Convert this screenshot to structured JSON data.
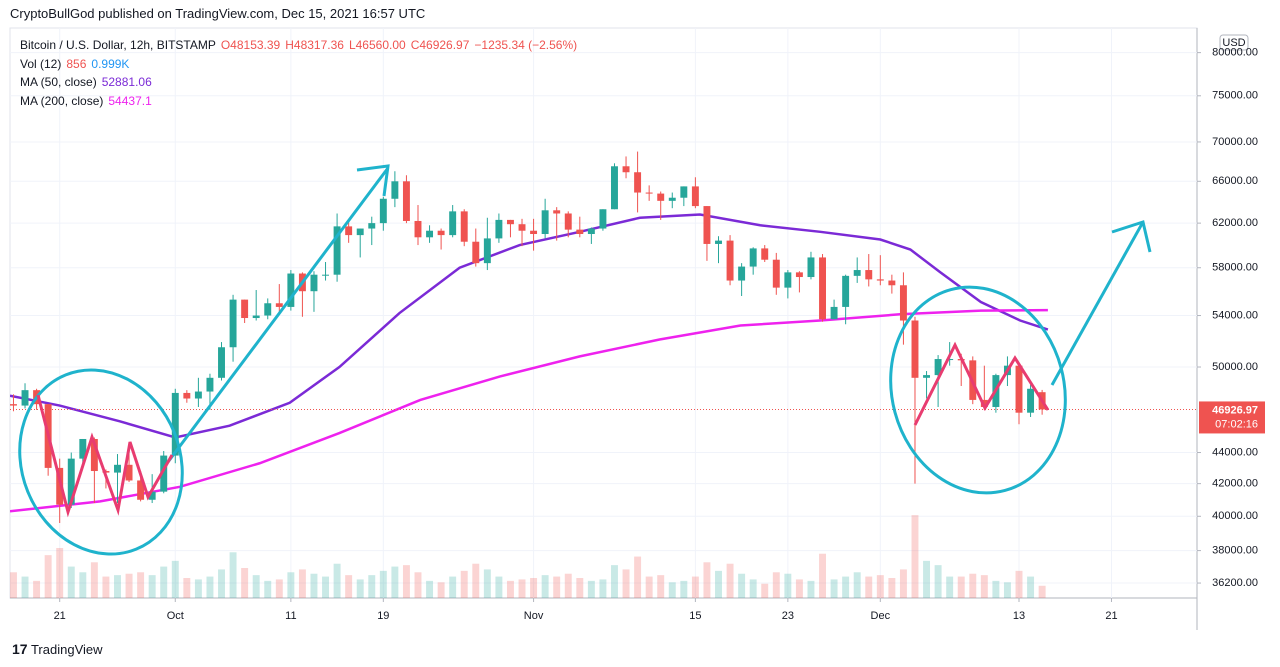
{
  "header": "CryptoBullGod published on TradingView.com, Dec 15, 2021 16:57 UTC",
  "footer": "TradingView",
  "chart_data": {
    "type": "candlestick",
    "symbol": "Bitcoin / U.S. Dollar, 12h, BITSTAMP",
    "ohlc_legend": [
      "O48153.39",
      "H48317.36",
      "L46560.00",
      "C46926.97",
      "−1235.34 (−2.56%)"
    ],
    "volume_legend": {
      "name": "Vol (12)",
      "value": 856,
      "average": "0.999K"
    },
    "currency": "USD",
    "last_price": 46926.97,
    "countdown": "07:02:16",
    "log_scale": true,
    "grid": true,
    "up_color": "#26a69a",
    "down_color": "#ef5350",
    "x": [
      16,
      17,
      18,
      19,
      20,
      21,
      22,
      23,
      24,
      25,
      26,
      27,
      28,
      29,
      30,
      31,
      32,
      33,
      34,
      35,
      36,
      37,
      38,
      39,
      40,
      41,
      42,
      43,
      44,
      45,
      46,
      47,
      48,
      49,
      50,
      51,
      52,
      53,
      54,
      55,
      56,
      57,
      58,
      59,
      60,
      61,
      62,
      63,
      64,
      65,
      66,
      67,
      68,
      69,
      70,
      71,
      72,
      73,
      74,
      75,
      76,
      77,
      78,
      79,
      80,
      81,
      82,
      83,
      84,
      85,
      86,
      87,
      88,
      89,
      90,
      91,
      92,
      93,
      94,
      95,
      96,
      97,
      98,
      99,
      100,
      101,
      102,
      103,
      104,
      105
    ],
    "open": [
      47300,
      47200,
      48300,
      47300,
      43000,
      40700,
      43600,
      44900,
      42800,
      42700,
      43200,
      42200,
      41000,
      41500,
      43800,
      48100,
      47700,
      48200,
      49200,
      51500,
      55300,
      53800,
      54000,
      55000,
      54700,
      57500,
      56000,
      57400,
      57400,
      61700,
      60900,
      61500,
      62000,
      64300,
      66000,
      62200,
      60700,
      61300,
      60900,
      63100,
      60300,
      58400,
      60600,
      62300,
      61900,
      61300,
      61000,
      63200,
      62900,
      61400,
      61000,
      61500,
      63300,
      67500,
      66900,
      64900,
      64800,
      64100,
      64400,
      65500,
      63600,
      60100,
      60400,
      56900,
      58100,
      59700,
      58700,
      56300,
      57600,
      57200,
      58900,
      53700,
      54700,
      57300,
      57800,
      57000,
      56900,
      56500,
      53600,
      49200,
      49400,
      50600,
      50600,
      50500,
      47600,
      47100,
      49400,
      50100,
      46700,
      48153.39
    ],
    "high": [
      48000,
      48800,
      48400,
      47300,
      43600,
      44000,
      44900,
      45000,
      42900,
      43900,
      44300,
      42800,
      42600,
      44100,
      48400,
      48300,
      49200,
      49500,
      51900,
      55700,
      55300,
      56100,
      55400,
      56600,
      57800,
      57600,
      57700,
      58500,
      62900,
      62300,
      61500,
      62600,
      64500,
      67000,
      66600,
      63700,
      61800,
      61500,
      63700,
      63300,
      61500,
      62500,
      62900,
      62300,
      62400,
      62400,
      64300,
      63500,
      63100,
      62600,
      61600,
      63300,
      67800,
      68500,
      69000,
      65600,
      65000,
      64900,
      65500,
      66400,
      63600,
      60800,
      60900,
      58400,
      59800,
      60000,
      59300,
      57800,
      57700,
      59400,
      59200,
      55300,
      57400,
      58900,
      59200,
      59100,
      57400,
      57600,
      53900,
      49700,
      50900,
      51900,
      51000,
      50800,
      50100,
      49500,
      50800,
      50200,
      48700,
      48317.36
    ],
    "low": [
      46800,
      47000,
      46900,
      42500,
      39600,
      40500,
      43100,
      40800,
      41700,
      40800,
      42100,
      40900,
      40800,
      41400,
      43300,
      47400,
      47100,
      46900,
      49000,
      50400,
      53400,
      53600,
      53700,
      54100,
      54400,
      53900,
      54300,
      56900,
      56800,
      60200,
      58900,
      60000,
      61300,
      63500,
      62000,
      60000,
      60200,
      59600,
      60700,
      59900,
      58100,
      57800,
      60200,
      60700,
      59900,
      59500,
      60600,
      60400,
      60700,
      60700,
      60100,
      61300,
      63300,
      66300,
      63000,
      64100,
      62300,
      63400,
      63600,
      63400,
      58600,
      58400,
      56500,
      55600,
      57400,
      58500,
      55700,
      55400,
      55900,
      57000,
      53500,
      53700,
      53300,
      56700,
      56400,
      56500,
      55800,
      51700,
      42000,
      47700,
      47100,
      50100,
      48600,
      47300,
      46900,
      46700,
      48600,
      45900,
      46400,
      46560
    ],
    "close": [
      47200,
      48300,
      47300,
      43000,
      40700,
      43600,
      44900,
      42800,
      42700,
      43200,
      42200,
      41000,
      41500,
      43800,
      48100,
      47700,
      48200,
      49200,
      51500,
      55300,
      53800,
      54000,
      55000,
      54700,
      57500,
      56000,
      57400,
      57400,
      61700,
      60900,
      61500,
      62000,
      64300,
      66000,
      62200,
      60700,
      61300,
      60900,
      63100,
      60300,
      58400,
      60600,
      62300,
      61900,
      61300,
      61000,
      63200,
      62900,
      61400,
      61000,
      61500,
      63300,
      67500,
      66900,
      64900,
      64800,
      64100,
      64400,
      65500,
      63600,
      60100,
      60400,
      56900,
      58100,
      59700,
      58700,
      56300,
      57600,
      57200,
      58900,
      53700,
      54700,
      57300,
      57800,
      57000,
      56900,
      56500,
      53600,
      49200,
      49400,
      50600,
      50600,
      50500,
      47600,
      47100,
      49400,
      50100,
      46700,
      48400,
      46926.97
    ],
    "volume": [
      1800,
      1500,
      1200,
      3000,
      3500,
      2200,
      1800,
      2500,
      1500,
      1600,
      1700,
      1800,
      1600,
      2200,
      2600,
      1400,
      1300,
      1500,
      2000,
      3200,
      2100,
      1600,
      1200,
      1300,
      1800,
      2000,
      1700,
      1500,
      2400,
      1600,
      1300,
      1600,
      1900,
      2200,
      2300,
      1800,
      1200,
      1100,
      1500,
      1900,
      2400,
      2000,
      1500,
      1200,
      1300,
      1400,
      1600,
      1500,
      1700,
      1400,
      1200,
      1300,
      2300,
      2000,
      2900,
      1500,
      1600,
      1100,
      1200,
      1500,
      2500,
      1900,
      2400,
      1700,
      1300,
      1000,
      1800,
      1700,
      1300,
      1200,
      3100,
      1300,
      1500,
      1800,
      1500,
      1600,
      1400,
      2000,
      5800,
      2600,
      2300,
      1500,
      1500,
      1700,
      1600,
      1200,
      1100,
      1900,
      1500,
      856
    ],
    "volume_lim": [
      0,
      7000
    ],
    "series": [
      {
        "name": "MA (50, close)",
        "last_value": 52881.06,
        "color": "#7b2ad6",
        "x": [
          15.7,
          20,
          25.2,
          30,
          34.7,
          39.9,
          44.2,
          49.4,
          54.6,
          59.8,
          65,
          70.2,
          75.4,
          80.6,
          85.8,
          91,
          93.6,
          96.2,
          99.7,
          103.1,
          105.5
        ],
        "values": [
          47900,
          47200,
          46100,
          45000,
          45800,
          47400,
          50000,
          54200,
          58000,
          60000,
          61200,
          62500,
          62800,
          61800,
          61200,
          60500,
          59600,
          57600,
          55100,
          53600,
          52881.06
        ]
      },
      {
        "name": "MA (200, close)",
        "last_value": 54437.1,
        "color": "#ee22ee",
        "x": [
          15.7,
          23.5,
          30.4,
          37.3,
          44.2,
          51.2,
          58.1,
          65,
          71.9,
          78.9,
          85.8,
          92.7,
          99.7,
          105.5
        ],
        "values": [
          40300,
          40900,
          41800,
          43300,
          45300,
          47600,
          49300,
          50800,
          52100,
          53200,
          53600,
          54100,
          54400,
          54437.1
        ]
      }
    ],
    "xlim": [
      15.7,
      118.4
    ],
    "ylim": [
      35400,
      83000
    ],
    "xticks": [
      {
        "value": 20,
        "label": "21"
      },
      {
        "value": 30,
        "label": "Oct"
      },
      {
        "value": 40,
        "label": "11"
      },
      {
        "value": 48,
        "label": "19"
      },
      {
        "value": 61,
        "label": "Nov"
      },
      {
        "value": 75,
        "label": "15"
      },
      {
        "value": 83,
        "label": "23"
      },
      {
        "value": 91,
        "label": "Dec"
      },
      {
        "value": 103,
        "label": "13"
      },
      {
        "value": 111,
        "label": "21"
      }
    ],
    "yticks": [
      {
        "value": 36200,
        "label": "36200.00"
      },
      {
        "value": 38000,
        "label": "38000.00"
      },
      {
        "value": 40000,
        "label": "40000.00"
      },
      {
        "value": 42000,
        "label": "42000.00"
      },
      {
        "value": 44000,
        "label": "44000.00"
      },
      {
        "value": 50000,
        "label": "50000.00"
      },
      {
        "value": 54000,
        "label": "54000.00"
      },
      {
        "value": 58000,
        "label": "58000.00"
      },
      {
        "value": 62000,
        "label": "62000.00"
      },
      {
        "value": 66000,
        "label": "66000.00"
      },
      {
        "value": 70000,
        "label": "70000.00"
      },
      {
        "value": 75000,
        "label": "75000.00"
      },
      {
        "value": 80000,
        "label": "80000.00"
      }
    ]
  }
}
